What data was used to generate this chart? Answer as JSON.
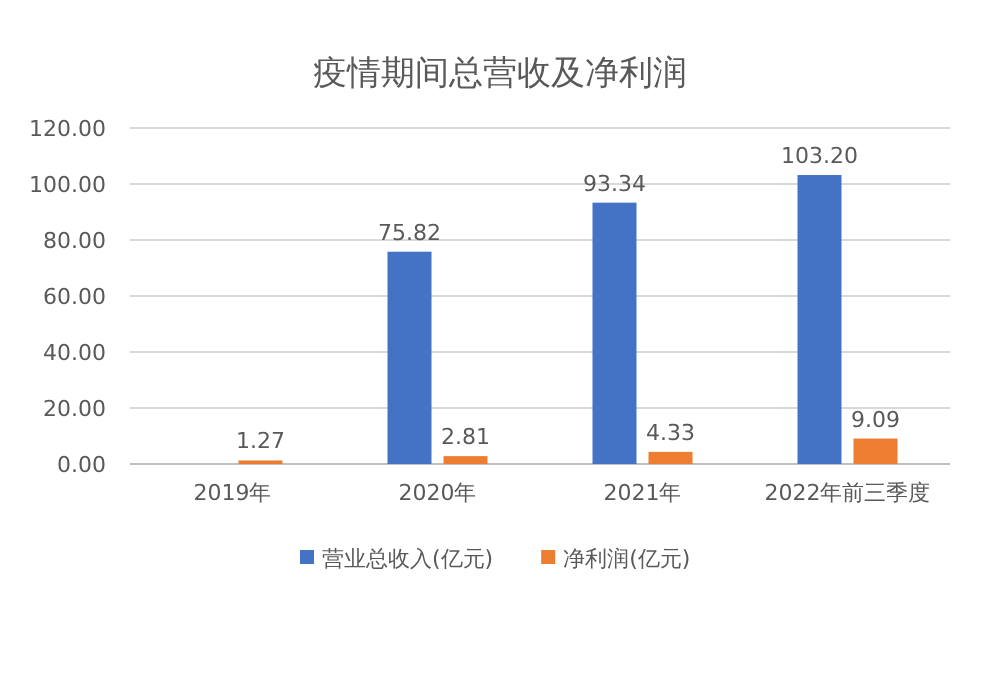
{
  "chart_data": {
    "type": "bar",
    "title": "疫情期间总营收及净利润",
    "categories": [
      "2019年",
      "2020年",
      "2021年",
      "2022年前三季度"
    ],
    "series": [
      {
        "name": "营业总收入(亿元)",
        "color": "#4472c4",
        "values": [
          null,
          75.82,
          93.34,
          103.2
        ],
        "value_labels": [
          null,
          "75.82",
          "93.34",
          "103.20"
        ]
      },
      {
        "name": "净利润(亿元)",
        "color": "#ed7d31",
        "values": [
          1.27,
          2.81,
          4.33,
          9.09
        ],
        "value_labels": [
          "1.27",
          "2.81",
          "4.33",
          "9.09"
        ]
      }
    ],
    "ylim": [
      0,
      120
    ],
    "yticks": [
      {
        "value": 0,
        "label": "0.00"
      },
      {
        "value": 20,
        "label": "20.00"
      },
      {
        "value": 40,
        "label": "40.00"
      },
      {
        "value": 60,
        "label": "60.00"
      },
      {
        "value": 80,
        "label": "80.00"
      },
      {
        "value": 100,
        "label": "100.00"
      },
      {
        "value": 120,
        "label": "120.00"
      }
    ],
    "grid": "y",
    "legend": "bottom"
  }
}
